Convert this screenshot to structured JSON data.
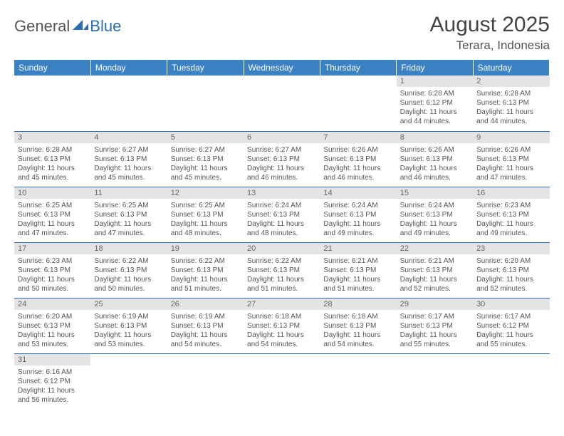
{
  "logo": {
    "part1": "General",
    "part2": "Blue"
  },
  "title": "August 2025",
  "location": "Terara, Indonesia",
  "colors": {
    "header_bg": "#3b82c4",
    "row_divider": "#2a6db0",
    "daynum_bg": "#e4e4e4",
    "text": "#555555",
    "logo_blue": "#2a6db0"
  },
  "weekdays": [
    "Sunday",
    "Monday",
    "Tuesday",
    "Wednesday",
    "Thursday",
    "Friday",
    "Saturday"
  ],
  "weeks": [
    [
      null,
      null,
      null,
      null,
      null,
      {
        "n": "1",
        "sr": "Sunrise: 6:28 AM",
        "ss": "Sunset: 6:12 PM",
        "dl": "Daylight: 11 hours and 44 minutes."
      },
      {
        "n": "2",
        "sr": "Sunrise: 6:28 AM",
        "ss": "Sunset: 6:13 PM",
        "dl": "Daylight: 11 hours and 44 minutes."
      }
    ],
    [
      {
        "n": "3",
        "sr": "Sunrise: 6:28 AM",
        "ss": "Sunset: 6:13 PM",
        "dl": "Daylight: 11 hours and 45 minutes."
      },
      {
        "n": "4",
        "sr": "Sunrise: 6:27 AM",
        "ss": "Sunset: 6:13 PM",
        "dl": "Daylight: 11 hours and 45 minutes."
      },
      {
        "n": "5",
        "sr": "Sunrise: 6:27 AM",
        "ss": "Sunset: 6:13 PM",
        "dl": "Daylight: 11 hours and 45 minutes."
      },
      {
        "n": "6",
        "sr": "Sunrise: 6:27 AM",
        "ss": "Sunset: 6:13 PM",
        "dl": "Daylight: 11 hours and 46 minutes."
      },
      {
        "n": "7",
        "sr": "Sunrise: 6:26 AM",
        "ss": "Sunset: 6:13 PM",
        "dl": "Daylight: 11 hours and 46 minutes."
      },
      {
        "n": "8",
        "sr": "Sunrise: 6:26 AM",
        "ss": "Sunset: 6:13 PM",
        "dl": "Daylight: 11 hours and 46 minutes."
      },
      {
        "n": "9",
        "sr": "Sunrise: 6:26 AM",
        "ss": "Sunset: 6:13 PM",
        "dl": "Daylight: 11 hours and 47 minutes."
      }
    ],
    [
      {
        "n": "10",
        "sr": "Sunrise: 6:25 AM",
        "ss": "Sunset: 6:13 PM",
        "dl": "Daylight: 11 hours and 47 minutes."
      },
      {
        "n": "11",
        "sr": "Sunrise: 6:25 AM",
        "ss": "Sunset: 6:13 PM",
        "dl": "Daylight: 11 hours and 47 minutes."
      },
      {
        "n": "12",
        "sr": "Sunrise: 6:25 AM",
        "ss": "Sunset: 6:13 PM",
        "dl": "Daylight: 11 hours and 48 minutes."
      },
      {
        "n": "13",
        "sr": "Sunrise: 6:24 AM",
        "ss": "Sunset: 6:13 PM",
        "dl": "Daylight: 11 hours and 48 minutes."
      },
      {
        "n": "14",
        "sr": "Sunrise: 6:24 AM",
        "ss": "Sunset: 6:13 PM",
        "dl": "Daylight: 11 hours and 49 minutes."
      },
      {
        "n": "15",
        "sr": "Sunrise: 6:24 AM",
        "ss": "Sunset: 6:13 PM",
        "dl": "Daylight: 11 hours and 49 minutes."
      },
      {
        "n": "16",
        "sr": "Sunrise: 6:23 AM",
        "ss": "Sunset: 6:13 PM",
        "dl": "Daylight: 11 hours and 49 minutes."
      }
    ],
    [
      {
        "n": "17",
        "sr": "Sunrise: 6:23 AM",
        "ss": "Sunset: 6:13 PM",
        "dl": "Daylight: 11 hours and 50 minutes."
      },
      {
        "n": "18",
        "sr": "Sunrise: 6:22 AM",
        "ss": "Sunset: 6:13 PM",
        "dl": "Daylight: 11 hours and 50 minutes."
      },
      {
        "n": "19",
        "sr": "Sunrise: 6:22 AM",
        "ss": "Sunset: 6:13 PM",
        "dl": "Daylight: 11 hours and 51 minutes."
      },
      {
        "n": "20",
        "sr": "Sunrise: 6:22 AM",
        "ss": "Sunset: 6:13 PM",
        "dl": "Daylight: 11 hours and 51 minutes."
      },
      {
        "n": "21",
        "sr": "Sunrise: 6:21 AM",
        "ss": "Sunset: 6:13 PM",
        "dl": "Daylight: 11 hours and 51 minutes."
      },
      {
        "n": "22",
        "sr": "Sunrise: 6:21 AM",
        "ss": "Sunset: 6:13 PM",
        "dl": "Daylight: 11 hours and 52 minutes."
      },
      {
        "n": "23",
        "sr": "Sunrise: 6:20 AM",
        "ss": "Sunset: 6:13 PM",
        "dl": "Daylight: 11 hours and 52 minutes."
      }
    ],
    [
      {
        "n": "24",
        "sr": "Sunrise: 6:20 AM",
        "ss": "Sunset: 6:13 PM",
        "dl": "Daylight: 11 hours and 53 minutes."
      },
      {
        "n": "25",
        "sr": "Sunrise: 6:19 AM",
        "ss": "Sunset: 6:13 PM",
        "dl": "Daylight: 11 hours and 53 minutes."
      },
      {
        "n": "26",
        "sr": "Sunrise: 6:19 AM",
        "ss": "Sunset: 6:13 PM",
        "dl": "Daylight: 11 hours and 54 minutes."
      },
      {
        "n": "27",
        "sr": "Sunrise: 6:18 AM",
        "ss": "Sunset: 6:13 PM",
        "dl": "Daylight: 11 hours and 54 minutes."
      },
      {
        "n": "28",
        "sr": "Sunrise: 6:18 AM",
        "ss": "Sunset: 6:13 PM",
        "dl": "Daylight: 11 hours and 54 minutes."
      },
      {
        "n": "29",
        "sr": "Sunrise: 6:17 AM",
        "ss": "Sunset: 6:13 PM",
        "dl": "Daylight: 11 hours and 55 minutes."
      },
      {
        "n": "30",
        "sr": "Sunrise: 6:17 AM",
        "ss": "Sunset: 6:12 PM",
        "dl": "Daylight: 11 hours and 55 minutes."
      }
    ],
    [
      {
        "n": "31",
        "sr": "Sunrise: 6:16 AM",
        "ss": "Sunset: 6:12 PM",
        "dl": "Daylight: 11 hours and 56 minutes."
      },
      null,
      null,
      null,
      null,
      null,
      null
    ]
  ]
}
